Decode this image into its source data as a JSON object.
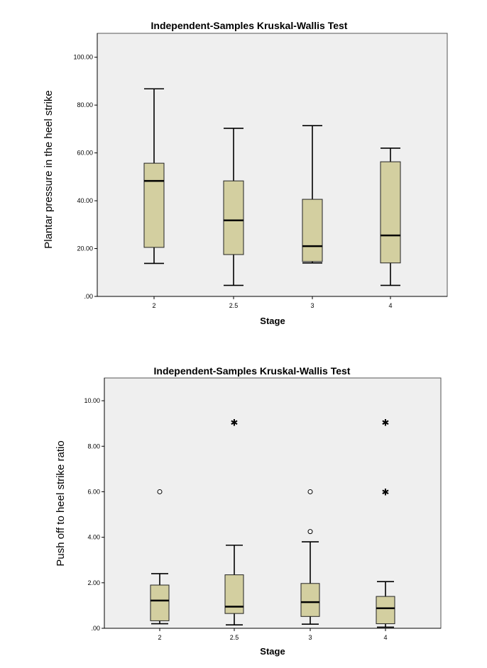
{
  "chart_data": [
    {
      "type": "box",
      "title": "Independent-Samples Kruskal-Wallis Test",
      "xlabel": "Stage",
      "ylabel": "Plantar pressure in the heel strike",
      "ylim": [
        0,
        110
      ],
      "yticks": [
        ".00",
        "20.00",
        "40.00",
        "60.00",
        "80.00",
        "100.00"
      ],
      "ytick_values": [
        0,
        20,
        40,
        60,
        80,
        100
      ],
      "categories": [
        "2",
        "2.5",
        "3",
        "4"
      ],
      "boxes": [
        {
          "category": "2",
          "min": 13.8,
          "q1": 20.5,
          "median": 48.3,
          "q3": 55.7,
          "max": 86.8,
          "outliers": []
        },
        {
          "category": "2.5",
          "min": 4.6,
          "q1": 17.5,
          "median": 31.8,
          "q3": 48.3,
          "max": 70.3,
          "outliers": []
        },
        {
          "category": "3",
          "min": 14.0,
          "q1": 14.6,
          "median": 21.0,
          "q3": 40.6,
          "max": 71.4,
          "outliers": []
        },
        {
          "category": "4",
          "min": 4.6,
          "q1": 14.0,
          "median": 25.5,
          "q3": 56.3,
          "max": 62.0,
          "outliers": []
        }
      ],
      "grid": false
    },
    {
      "type": "box",
      "title": "Independent-Samples Kruskal-Wallis Test",
      "xlabel": "Stage",
      "ylabel": "Push off to heel strike ratio",
      "ylim": [
        0,
        11
      ],
      "yticks": [
        ".00",
        "2.00",
        "4.00",
        "6.00",
        "8.00",
        "10.00"
      ],
      "ytick_values": [
        0,
        2,
        4,
        6,
        8,
        10
      ],
      "categories": [
        "2",
        "2.5",
        "3",
        "4"
      ],
      "boxes": [
        {
          "category": "2",
          "min": 0.2,
          "q1": 0.33,
          "median": 1.22,
          "q3": 1.9,
          "max": 2.4,
          "outliers": [
            {
              "value": 6.0,
              "marker": "circle"
            }
          ]
        },
        {
          "category": "2.5",
          "min": 0.15,
          "q1": 0.65,
          "median": 0.95,
          "q3": 2.35,
          "max": 3.65,
          "outliers": [
            {
              "value": 9.05,
              "marker": "star"
            }
          ]
        },
        {
          "category": "3",
          "min": 0.18,
          "q1": 0.52,
          "median": 1.15,
          "q3": 1.97,
          "max": 3.8,
          "outliers": [
            {
              "value": 6.0,
              "marker": "circle"
            },
            {
              "value": 4.25,
              "marker": "circle"
            }
          ]
        },
        {
          "category": "4",
          "min": 0.05,
          "q1": 0.2,
          "median": 0.88,
          "q3": 1.4,
          "max": 2.05,
          "outliers": [
            {
              "value": 9.05,
              "marker": "star"
            },
            {
              "value": 6.0,
              "marker": "star"
            }
          ]
        }
      ],
      "grid": false
    }
  ],
  "colors": {
    "box_fill": "#d3cfa0",
    "plot_background": "#efefef",
    "frame": "#555555"
  }
}
